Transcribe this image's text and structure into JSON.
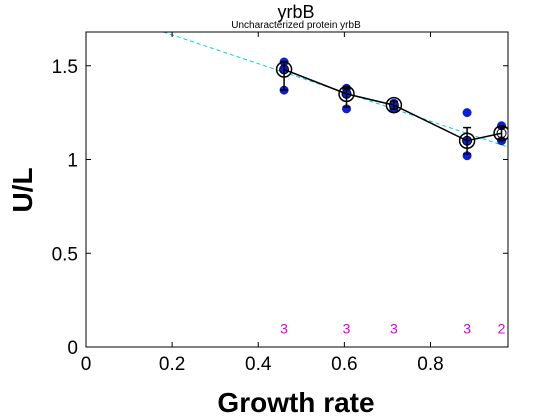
{
  "chart_data": {
    "type": "scatter",
    "title": "yrbB",
    "subtitle": "Uncharacterized protein yrbB",
    "xlabel": "Growth rate",
    "ylabel": "U/L",
    "xlim": [
      0,
      0.98
    ],
    "ylim": [
      0,
      1.68
    ],
    "x_ticks": [
      0,
      0.2,
      0.4,
      0.6,
      0.8
    ],
    "x_tick_labels": [
      "0",
      "0.2",
      "0.4",
      "0.6",
      "0.8"
    ],
    "y_ticks": [
      0,
      0.5,
      1,
      1.5
    ],
    "y_tick_labels": [
      "0",
      "0.5",
      "1",
      "1.5"
    ],
    "replicates": {
      "x": [
        0.46,
        0.46,
        0.46,
        0.605,
        0.605,
        0.605,
        0.715,
        0.715,
        0.715,
        0.885,
        0.885,
        0.885,
        0.965,
        0.965
      ],
      "y": [
        1.52,
        1.48,
        1.37,
        1.38,
        1.35,
        1.27,
        1.3,
        1.29,
        1.27,
        1.25,
        1.1,
        1.02,
        1.18,
        1.1
      ]
    },
    "means": {
      "x": [
        0.46,
        0.605,
        0.715,
        0.885,
        0.965
      ],
      "y": [
        1.48,
        1.35,
        1.29,
        1.1,
        1.14
      ],
      "err_low": [
        1.37,
        1.28,
        1.27,
        1.03,
        1.11
      ],
      "err_high": [
        1.52,
        1.38,
        1.31,
        1.17,
        1.17
      ]
    },
    "fit_line": {
      "x": [
        0.18,
        0.975
      ],
      "y": [
        1.68,
        1.07
      ]
    },
    "counts": {
      "x": [
        0.46,
        0.605,
        0.715,
        0.885,
        0.965
      ],
      "y": 0.1,
      "labels": [
        "3",
        "3",
        "3",
        "3",
        "2"
      ]
    },
    "colors": {
      "replicate": "#0a1fd6",
      "mean_line": "#000000",
      "fit": "#00cfe6",
      "count": "#e000e0"
    }
  }
}
